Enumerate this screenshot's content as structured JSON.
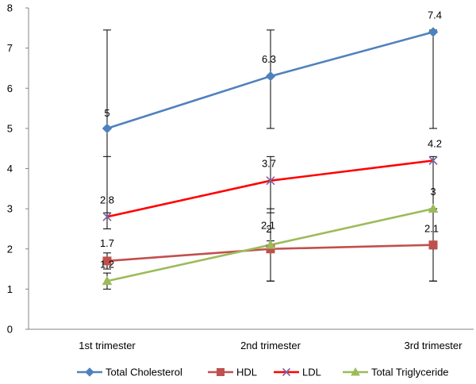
{
  "chart_data": {
    "type": "line",
    "categories": [
      "1st trimester",
      "2nd trimester",
      "3rd trimester"
    ],
    "ylim": [
      0,
      8
    ],
    "yticks": [
      0,
      1,
      2,
      3,
      4,
      5,
      6,
      7,
      8
    ],
    "grid": false,
    "legend_position": "bottom",
    "series": [
      {
        "name": "Total Cholesterol",
        "values": [
          5,
          6.3,
          7.4
        ],
        "labels": [
          "5",
          "6.3",
          "7.4"
        ],
        "color": "#4F81BD",
        "marker": "diamond",
        "error_bars": [
          [
            2.9,
            7.45
          ],
          [
            5.0,
            7.45
          ],
          [
            5.0,
            7.45
          ]
        ]
      },
      {
        "name": "HDL",
        "values": [
          1.7,
          2.0,
          2.1
        ],
        "labels": [
          "1.7",
          "2",
          "2.1"
        ],
        "color": "#C0504D",
        "marker": "square",
        "error_bars": [
          [
            1.5,
            1.9
          ],
          [
            1.2,
            2.9
          ],
          [
            1.2,
            3.0
          ]
        ]
      },
      {
        "name": "LDL",
        "values": [
          2.8,
          3.7,
          4.2
        ],
        "labels": [
          "2.8",
          "3.7",
          "4.2"
        ],
        "color": "#FF0000",
        "marker": "x",
        "error_bars": [
          [
            2.5,
            4.3
          ],
          [
            2.2,
            4.3
          ],
          [
            2.0,
            4.3
          ]
        ]
      },
      {
        "name": "Total Triglyceride",
        "values": [
          1.2,
          2.1,
          3.0
        ],
        "labels": [
          "1.2",
          "2.1",
          "3"
        ],
        "color": "#9BBB59",
        "marker": "triangle",
        "error_bars": [
          [
            1.0,
            1.4
          ],
          [
            1.2,
            3.0
          ],
          [
            1.2,
            3.0
          ]
        ]
      }
    ]
  }
}
